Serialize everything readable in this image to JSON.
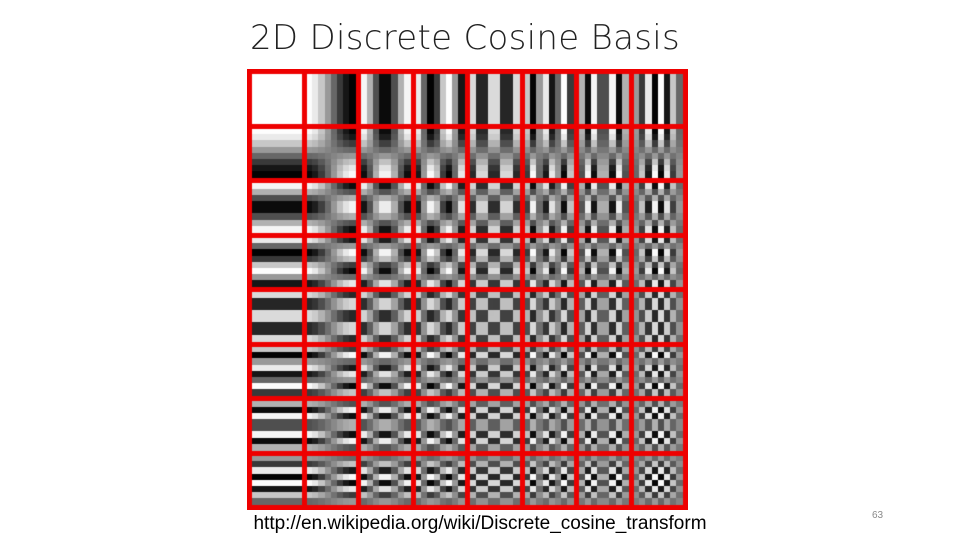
{
  "slide": {
    "title": "2D Discrete Cosine Basis",
    "source": "http://en.wikipedia.org/wiki/Discrete_cosine_transform",
    "page_number": "63"
  },
  "figure": {
    "grid_rows": 8,
    "grid_cols": 8,
    "block_samples": 8,
    "grid_color": "#ee0000"
  }
}
